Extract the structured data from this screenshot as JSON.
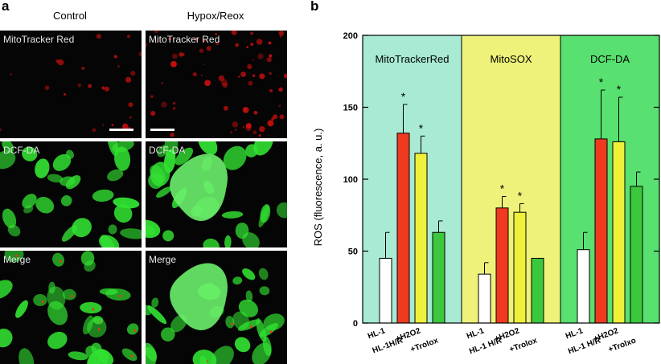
{
  "panel_a": {
    "letter": "a",
    "columns": [
      "Control",
      "Hypox/Reox"
    ],
    "rows": [
      {
        "label": "MitoTracker Red",
        "color": "#e01010",
        "labels": [
          "MitoTracker Red",
          "MitoTracker Red"
        ]
      },
      {
        "label": "DCF-DA",
        "color": "#32e032",
        "labels": [
          "DCF-DA",
          "DCF-DA"
        ]
      },
      {
        "label": "Merge",
        "color": "#32e032",
        "labels": [
          "Merge",
          "Merge"
        ]
      }
    ]
  },
  "panel_b": {
    "letter": "b"
  },
  "chart_data": {
    "type": "bar",
    "title": "",
    "xlabel": "",
    "ylabel": "ROS  (fluorescence, a. u.)",
    "ylim": [
      0,
      200
    ],
    "yticks": [
      0,
      50,
      100,
      150,
      200
    ],
    "groups": [
      {
        "name": "MitoTrackerRed",
        "background": "#a8ead4",
        "categories": [
          "HL-1",
          "HL-1H/R",
          "+H2O2",
          "+Trolox"
        ],
        "values": [
          45,
          132,
          118,
          63
        ],
        "errors": [
          18,
          20,
          12,
          8
        ],
        "significant": [
          false,
          true,
          true,
          false
        ],
        "colors": [
          "#ffffff",
          "#f03a20",
          "#eef03a",
          "#3cc83c"
        ]
      },
      {
        "name": "MitoSOX",
        "background": "#eef27a",
        "categories": [
          "HL-1",
          "HL-1 H/R",
          "+H2O2",
          "+Trolox"
        ],
        "values": [
          34,
          80,
          77,
          45
        ],
        "errors": [
          8,
          8,
          6,
          0
        ],
        "significant": [
          false,
          true,
          true,
          false
        ],
        "colors": [
          "#ffffff",
          "#f03a20",
          "#eef03a",
          "#3cc83c"
        ]
      },
      {
        "name": "DCF-DA",
        "background": "#58e070",
        "categories": [
          "HL-1",
          "HL-1 H/R",
          "+H2O2",
          "+Trolxo"
        ],
        "values": [
          51,
          128,
          126,
          95
        ],
        "errors": [
          12,
          34,
          31,
          10
        ],
        "significant": [
          false,
          true,
          true,
          false
        ],
        "colors": [
          "#ffffff",
          "#f03a20",
          "#eef03a",
          "#3cc83c"
        ]
      }
    ],
    "significance_marker": "*",
    "grid": false
  }
}
